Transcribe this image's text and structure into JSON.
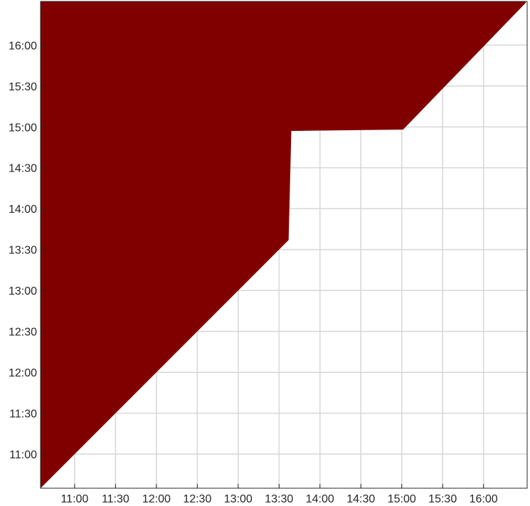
{
  "chart_data": {
    "type": "heatmap",
    "title": "",
    "xlabel": "",
    "ylabel": "",
    "x_axis": {
      "unit": "time of day (HH:MM)",
      "range": [
        "10:35",
        "16:32"
      ],
      "ticks": [
        "11:00",
        "11:30",
        "12:00",
        "12:30",
        "13:00",
        "13:30",
        "14:00",
        "14:30",
        "15:00",
        "15:30",
        "16:00"
      ]
    },
    "y_axis": {
      "unit": "time of day (HH:MM)",
      "range": [
        "10:35",
        "16:32"
      ],
      "direction": "up",
      "ticks": [
        "11:00",
        "11:30",
        "12:00",
        "12:30",
        "13:00",
        "13:30",
        "14:00",
        "14:30",
        "15:00",
        "15:30",
        "16:00"
      ]
    },
    "grid": true,
    "fill_color": "#800000",
    "background_color": "#ffffff",
    "filled_region_boundary": [
      {
        "x": "10:35",
        "y": "10:35"
      },
      {
        "x": "13:37",
        "y": "13:37"
      },
      {
        "x": "13:39",
        "y": "14:57"
      },
      {
        "x": "15:01",
        "y": "14:58"
      },
      {
        "x": "16:31",
        "y": "16:31"
      }
    ]
  }
}
